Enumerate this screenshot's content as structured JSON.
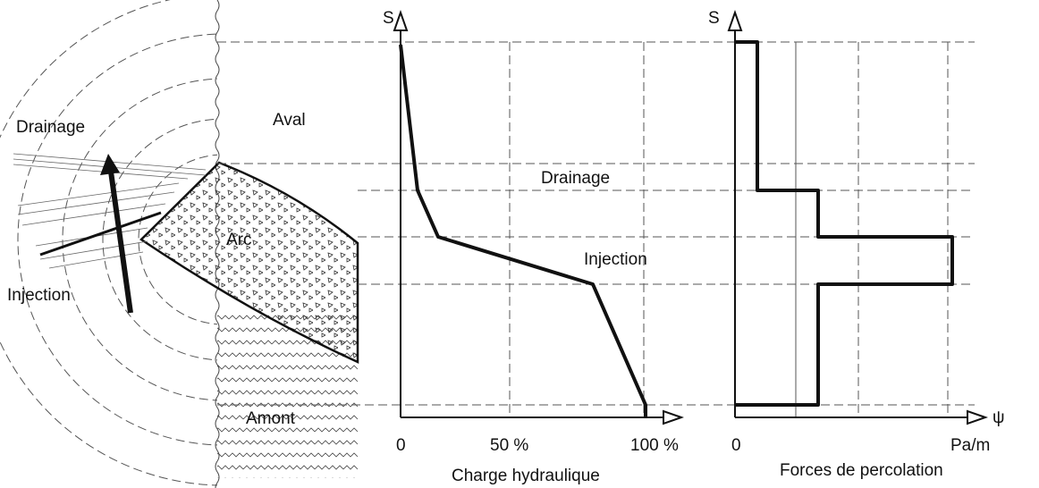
{
  "left_panel": {
    "drainage": "Drainage",
    "aval": "Aval",
    "arc": "Arc",
    "injection": "Injection",
    "amont": "Amont"
  },
  "hydraulic_chart": {
    "axis_s": "S",
    "drainage": "Drainage",
    "injection": "Injection",
    "tick_0": "0",
    "tick_50": "50 %",
    "tick_100": "100 %",
    "title": "Charge hydraulique"
  },
  "percolation_chart": {
    "axis_s": "S",
    "axis_psi": "ψ",
    "tick_0": "0",
    "tick_unit": "Pa/m",
    "title": "Forces de percolation"
  }
}
